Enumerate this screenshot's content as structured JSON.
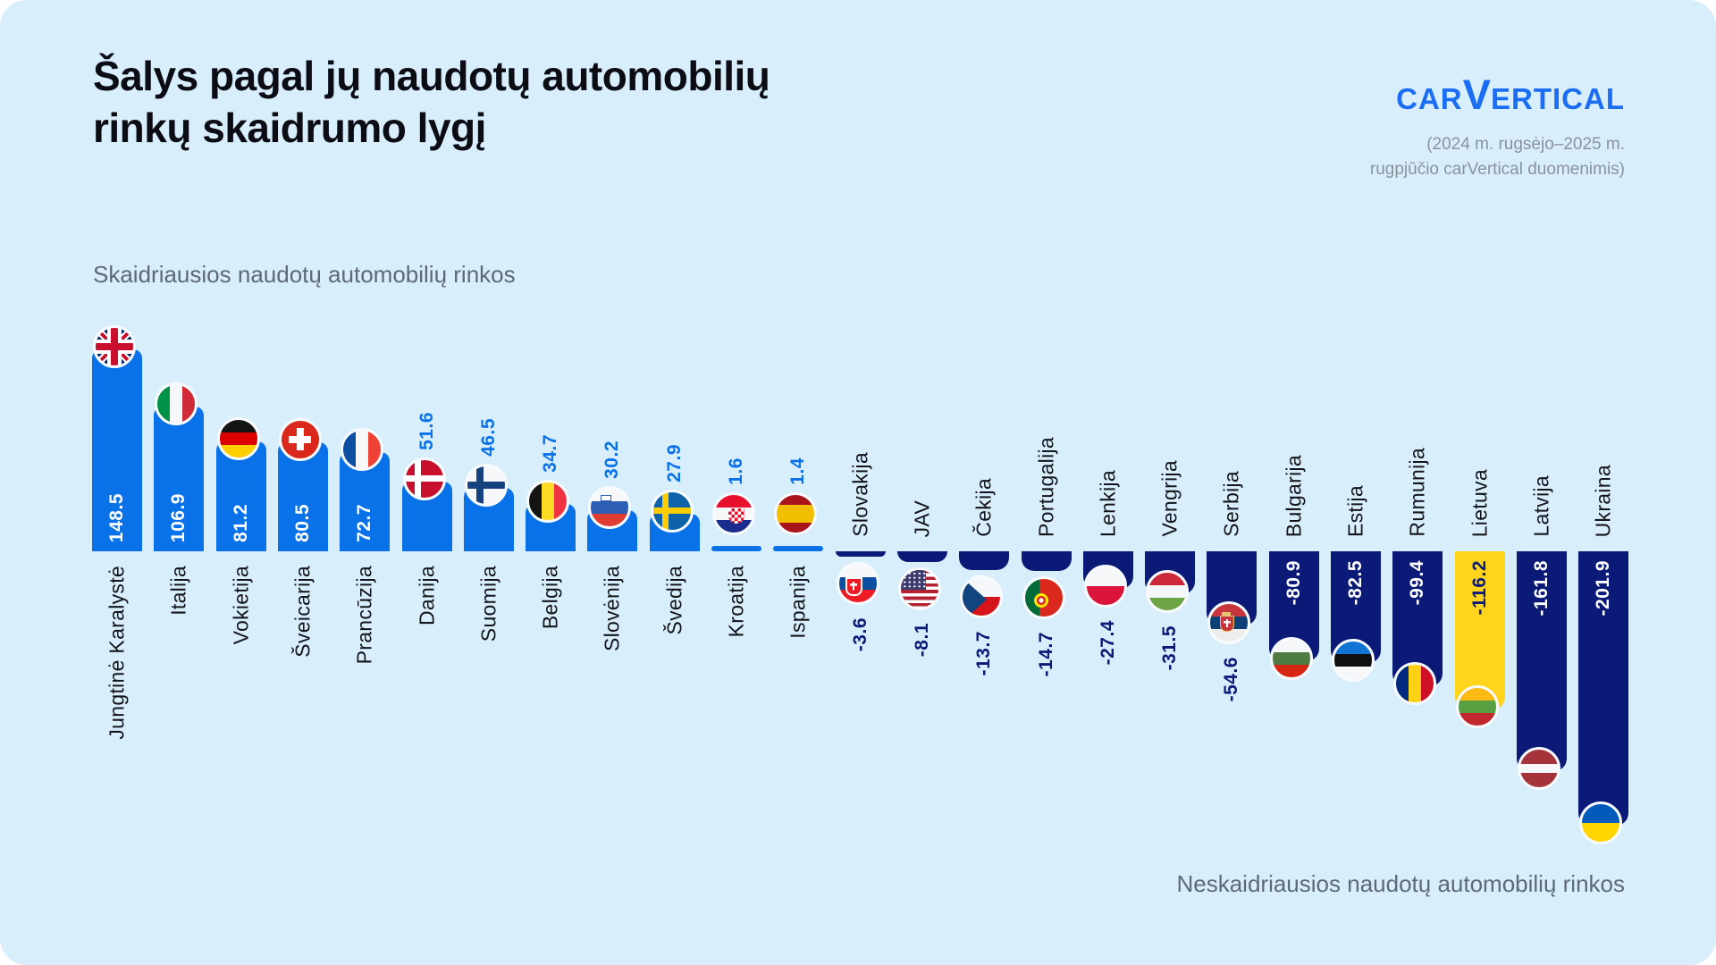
{
  "header": {
    "title_line1": "Šalys pagal jų naudotų automobilių",
    "title_line2": "rinkų skaidrumo lygį",
    "logo": {
      "part1": "CAR",
      "accent": "V",
      "part2": "ERTICAL"
    },
    "subtitle_line1": "(2024 m. rugsėjo–2025 m.",
    "subtitle_line2": "rugpjūčio carVertical duomenimis)"
  },
  "sections": {
    "most_transparent": "Skaidriausios naudotų automobilių rinkos",
    "least_transparent": "Neskaidriausios naudotų automobilių rinkos"
  },
  "colors": {
    "background": "#D8EEFB",
    "positive_bar": "#0A72E8",
    "negative_bar": "#0B1A77",
    "highlight_bar": "#FFD41C",
    "positive_value_text": "#0A72E8",
    "negative_value_text": "#0B1A77",
    "value_on_bar_text": "#FFFFFF",
    "brand_blue": "#1B6EF3",
    "title_text": "#0C0C14",
    "muted_text": "#8A939C",
    "section_text": "#5D6974",
    "country_label_text": "#14141B"
  },
  "chart_data": {
    "type": "bar",
    "title": "Šalys pagal jų naudotų automobilių rinkų skaidrumo lygį",
    "subtitle": "(2024 m. rugsėjo–2025 m. rugpjūčio carVertical duomenimis)",
    "positive_side_label": "Skaidriausios naudotų automobilių rinkos",
    "negative_side_label": "Neskaidriausios naudotų automobilių rinkos",
    "highlight_country": "Lietuva",
    "categories": [
      "Jungtinė Karalystė",
      "Italija",
      "Vokietija",
      "Šveicarija",
      "Prancūzija",
      "Danija",
      "Suomija",
      "Belgija",
      "Slovėnija",
      "Švedija",
      "Kroatija",
      "Ispanija",
      "Slovakija",
      "JAV",
      "Čekija",
      "Portugalija",
      "Lenkija",
      "Vengrija",
      "Serbija",
      "Bulgarija",
      "Estija",
      "Rumunija",
      "Lietuva",
      "Latvija",
      "Ukraina"
    ],
    "values": [
      148.5,
      106.9,
      81.2,
      80.5,
      72.7,
      51.6,
      46.5,
      34.7,
      30.2,
      27.9,
      1.6,
      1.4,
      -3.6,
      -8.1,
      -13.7,
      -14.7,
      -27.4,
      -31.5,
      -54.6,
      -80.9,
      -82.5,
      -99.4,
      -116.2,
      -161.8,
      -201.9
    ],
    "countries": [
      {
        "label": "Jungtinė Karalystė",
        "value": 148.5,
        "flag": "uk"
      },
      {
        "label": "Italija",
        "value": 106.9,
        "flag": "italy"
      },
      {
        "label": "Vokietija",
        "value": 81.2,
        "flag": "germany"
      },
      {
        "label": "Šveicarija",
        "value": 80.5,
        "flag": "switzerland"
      },
      {
        "label": "Prancūzija",
        "value": 72.7,
        "flag": "france"
      },
      {
        "label": "Danija",
        "value": 51.6,
        "flag": "denmark"
      },
      {
        "label": "Suomija",
        "value": 46.5,
        "flag": "finland"
      },
      {
        "label": "Belgija",
        "value": 34.7,
        "flag": "belgium"
      },
      {
        "label": "Slovėnija",
        "value": 30.2,
        "flag": "slovenia"
      },
      {
        "label": "Švedija",
        "value": 27.9,
        "flag": "sweden"
      },
      {
        "label": "Kroatija",
        "value": 1.6,
        "flag": "croatia"
      },
      {
        "label": "Ispanija",
        "value": 1.4,
        "flag": "spain"
      },
      {
        "label": "Slovakija",
        "value": -3.6,
        "flag": "slovakia"
      },
      {
        "label": "JAV",
        "value": -8.1,
        "flag": "usa"
      },
      {
        "label": "Čekija",
        "value": -13.7,
        "flag": "czechia"
      },
      {
        "label": "Portugalija",
        "value": -14.7,
        "flag": "portugal"
      },
      {
        "label": "Lenkija",
        "value": -27.4,
        "flag": "poland"
      },
      {
        "label": "Vengrija",
        "value": -31.5,
        "flag": "hungary"
      },
      {
        "label": "Serbija",
        "value": -54.6,
        "flag": "serbia"
      },
      {
        "label": "Bulgarija",
        "value": -80.9,
        "flag": "bulgaria"
      },
      {
        "label": "Estija",
        "value": -82.5,
        "flag": "estonia"
      },
      {
        "label": "Rumunija",
        "value": -99.4,
        "flag": "romania"
      },
      {
        "label": "Lietuva",
        "value": -116.2,
        "flag": "lithuania",
        "highlight": true
      },
      {
        "label": "Latvija",
        "value": -161.8,
        "flag": "latvia"
      },
      {
        "label": "Ukraina",
        "value": -201.9,
        "flag": "ukraine"
      }
    ]
  }
}
